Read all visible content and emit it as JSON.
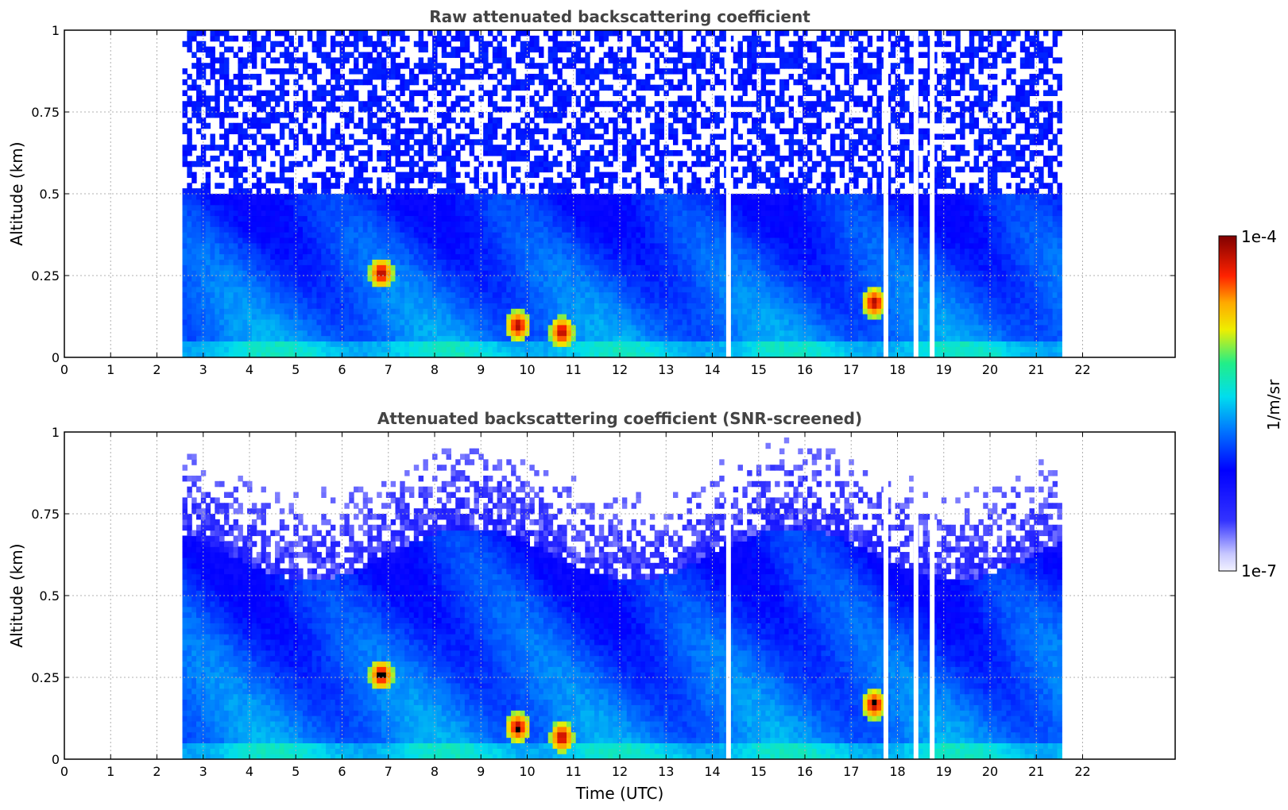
{
  "chart_data": [
    {
      "type": "heatmap",
      "title": "Raw attenuated backscattering coefficient",
      "xlabel": "",
      "ylabel": "Altitude (km)",
      "xlim": [
        0,
        24
      ],
      "ylim": [
        0,
        1
      ],
      "x_ticks": [
        "0",
        "1",
        "2",
        "3",
        "4",
        "5",
        "6",
        "7",
        "8",
        "9",
        "10",
        "11",
        "12",
        "13",
        "14",
        "15",
        "16",
        "17",
        "18",
        "19",
        "20",
        "21",
        "22"
      ],
      "y_ticks": [
        "0",
        "0.25",
        "0.5",
        "0.75",
        "1"
      ],
      "grid": true,
      "data_range_hours": [
        2.55,
        21.55
      ],
      "hotspots": [
        {
          "time": 6.8,
          "altitude": 0.25,
          "level": "high"
        },
        {
          "time": 9.75,
          "altitude": 0.09,
          "level": "very high"
        },
        {
          "time": 10.7,
          "altitude": 0.07,
          "level": "high"
        },
        {
          "time": 17.45,
          "altitude": 0.16,
          "level": "very high"
        }
      ],
      "gaps_hours": [
        14.35,
        17.75,
        18.4,
        18.75
      ]
    },
    {
      "type": "heatmap",
      "title": "Attenuated backscattering coefficient (SNR-screened)",
      "xlabel": "Time (UTC)",
      "ylabel": "Altitude (km)",
      "xlim": [
        0,
        24
      ],
      "ylim": [
        0,
        1
      ],
      "x_ticks": [
        "0",
        "1",
        "2",
        "3",
        "4",
        "5",
        "6",
        "7",
        "8",
        "9",
        "10",
        "11",
        "12",
        "13",
        "14",
        "15",
        "16",
        "17",
        "18",
        "19",
        "20",
        "21",
        "22"
      ],
      "y_ticks": [
        "0",
        "0.25",
        "0.5",
        "0.75",
        "1"
      ],
      "grid": true,
      "data_range_hours": [
        2.55,
        21.55
      ],
      "hotspots": [
        {
          "time": 6.8,
          "altitude": 0.25,
          "level": "saturated"
        },
        {
          "time": 9.75,
          "altitude": 0.09,
          "level": "very high"
        },
        {
          "time": 10.7,
          "altitude": 0.06,
          "level": "saturated"
        },
        {
          "time": 17.45,
          "altitude": 0.16,
          "level": "saturated"
        }
      ],
      "gaps_hours": [
        14.35,
        17.75,
        18.4,
        18.75
      ]
    }
  ],
  "colorbar": {
    "max_label": "1e-4",
    "min_label": "1e-7",
    "unit": "1/m/sr",
    "colors": [
      "#ffffff",
      "#0000ff",
      "#00aaff",
      "#00ffcc",
      "#ffff00",
      "#ff6600",
      "#ff0000",
      "#7f0000"
    ]
  }
}
